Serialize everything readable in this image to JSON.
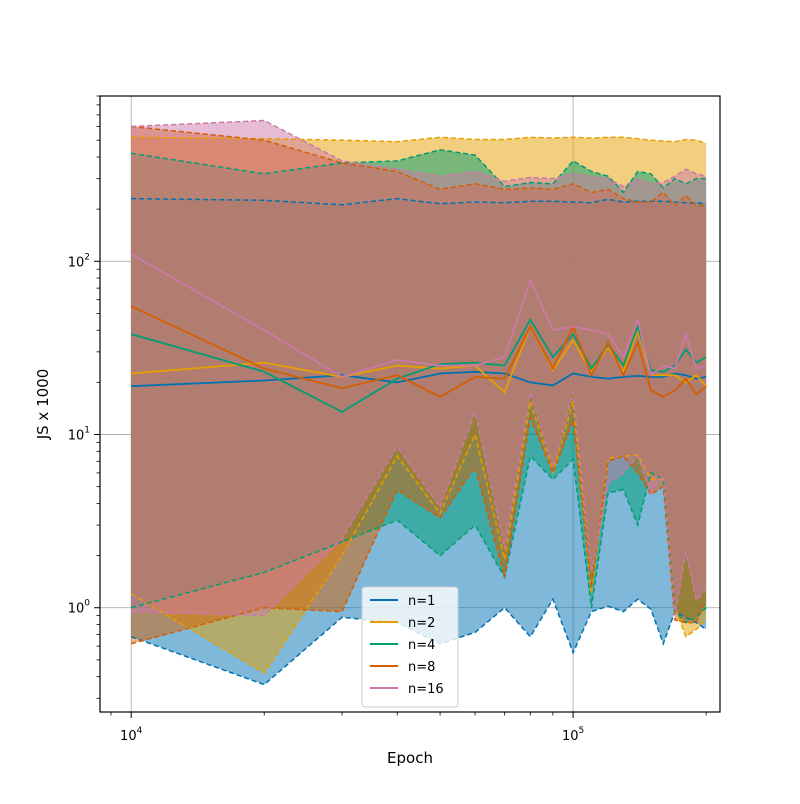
{
  "chart_data": {
    "type": "line",
    "title": "",
    "xlabel": "Epoch",
    "ylabel": "JS x 1000",
    "xscale": "log",
    "yscale": "log",
    "xlim": [
      8500,
      215000
    ],
    "ylim": [
      0.25,
      900
    ],
    "grid": true,
    "legend_position": "lower center",
    "x_ticks": [
      {
        "value": 10000,
        "base": "10",
        "exp": "4"
      },
      {
        "value": 100000,
        "base": "10",
        "exp": "5"
      }
    ],
    "y_ticks": [
      {
        "value": 1,
        "base": "10",
        "exp": "0"
      },
      {
        "value": 10,
        "base": "10",
        "exp": "1"
      },
      {
        "value": 100,
        "base": "10",
        "exp": "2"
      }
    ],
    "x": [
      10000,
      20000,
      30000,
      40000,
      50000,
      60000,
      70000,
      80000,
      90000,
      100000,
      110000,
      120000,
      130000,
      140000,
      150000,
      160000,
      170000,
      180000,
      190000,
      200000
    ],
    "series": [
      {
        "name": "n=1",
        "color": "#0072b2",
        "mean": [
          19.0,
          20.5,
          22.0,
          20.0,
          22.5,
          23.0,
          22.5,
          20.0,
          19.2,
          22.5,
          21.5,
          21.0,
          21.5,
          21.8,
          21.5,
          21.5,
          22.5,
          22.0,
          21.0,
          21.5
        ],
        "upper": [
          230,
          225,
          212,
          230,
          215,
          220,
          218,
          222,
          222,
          220,
          218,
          228,
          220,
          222,
          222,
          222,
          220,
          218,
          218,
          215
        ],
        "lower": [
          0.68,
          0.36,
          0.88,
          0.82,
          0.62,
          0.72,
          1.0,
          0.68,
          1.12,
          0.55,
          0.95,
          1.02,
          0.95,
          1.12,
          0.98,
          0.62,
          0.95,
          0.88,
          0.82,
          0.75
        ]
      },
      {
        "name": "n=2",
        "color": "#e69f00",
        "mean": [
          22.5,
          26.0,
          21.5,
          25.0,
          24.0,
          25.0,
          17.5,
          42.0,
          23.5,
          35.0,
          23.0,
          32.0,
          23.0,
          40.0,
          22.0,
          22.0,
          22.0,
          20.0,
          22.0,
          19.0
        ],
        "upper": [
          520,
          510,
          500,
          490,
          520,
          505,
          505,
          520,
          515,
          520,
          515,
          520,
          520,
          510,
          500,
          495,
          490,
          505,
          500,
          480
        ],
        "lower": [
          1.2,
          0.42,
          2.0,
          7.5,
          3.5,
          10.0,
          1.9,
          15.5,
          6.0,
          15.5,
          1.2,
          7.3,
          7.5,
          7.6,
          5.5,
          5.5,
          1.0,
          0.68,
          0.75,
          0.85
        ]
      },
      {
        "name": "n=4",
        "color": "#009e73",
        "mean": [
          38.0,
          23.0,
          13.5,
          21.0,
          25.5,
          26.0,
          25.0,
          46.0,
          28.0,
          38.0,
          24.0,
          33.0,
          25.0,
          42.0,
          23.5,
          23.0,
          25.0,
          31.0,
          26.0,
          28.0
        ],
        "upper": [
          420,
          320,
          370,
          380,
          440,
          410,
          270,
          285,
          280,
          380,
          330,
          310,
          250,
          330,
          320,
          265,
          300,
          280,
          300,
          300
        ],
        "lower": [
          1.0,
          1.6,
          2.4,
          3.2,
          2.0,
          3.0,
          1.5,
          7.5,
          5.5,
          7.2,
          1.0,
          4.6,
          4.8,
          3.0,
          6.0,
          5.5,
          0.95,
          0.82,
          0.88,
          1.0
        ]
      },
      {
        "name": "n=8",
        "color": "#d55e00",
        "mean": [
          55.0,
          24.0,
          18.5,
          22.0,
          16.5,
          21.5,
          21.0,
          42.0,
          24.0,
          42.0,
          22.0,
          34.0,
          22.0,
          34.0,
          18.0,
          16.5,
          18.0,
          21.0,
          17.0,
          19.0
        ],
        "upper": [
          600,
          500,
          370,
          330,
          260,
          280,
          260,
          265,
          260,
          280,
          250,
          260,
          230,
          220,
          220,
          250,
          210,
          240,
          210,
          210
        ],
        "lower": [
          0.62,
          1.0,
          0.95,
          4.8,
          3.3,
          6.5,
          1.5,
          12.5,
          6.0,
          12.0,
          1.3,
          7.0,
          7.5,
          6.0,
          4.5,
          5.0,
          0.85,
          0.82,
          0.82,
          1.1
        ]
      },
      {
        "name": "n=16",
        "color": "#cc79a7",
        "mean": [
          110.0,
          40.0,
          21.5,
          27.0,
          25.0,
          25.0,
          28.0,
          78.0,
          40.0,
          42.0,
          40.0,
          38.0,
          28.0,
          46.0,
          22.0,
          25.0,
          24.0,
          38.0,
          24.0,
          25.0
        ],
        "upper": [
          600,
          650,
          380,
          340,
          310,
          330,
          290,
          305,
          300,
          320,
          310,
          300,
          270,
          300,
          280,
          285,
          310,
          340,
          320,
          310
        ],
        "lower": [
          0.95,
          0.9,
          2.5,
          8.5,
          3.8,
          13.5,
          2.2,
          17.5,
          6.5,
          17.5,
          1.6,
          5.2,
          6.0,
          7.5,
          4.6,
          5.8,
          0.9,
          2.1,
          1.1,
          1.3
        ]
      }
    ]
  }
}
